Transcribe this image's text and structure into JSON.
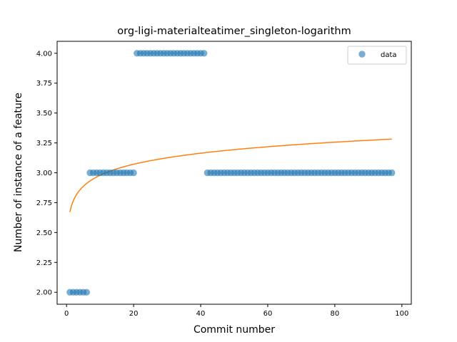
{
  "chart_data": {
    "type": "scatter",
    "title": "org-ligi-materialteatimer_singleton-logarithm",
    "xlabel": "Commit number",
    "ylabel": "Number of instance of a feature",
    "xlim": [
      -2.8,
      102.8
    ],
    "ylim": [
      1.9,
      4.1
    ],
    "xticks": [
      0,
      20,
      40,
      60,
      80,
      100
    ],
    "yticks": [
      2.0,
      2.25,
      2.5,
      2.75,
      3.0,
      3.25,
      3.5,
      3.75,
      4.0
    ],
    "ytick_labels": [
      "2.00",
      "2.25",
      "2.50",
      "2.75",
      "3.00",
      "3.25",
      "3.50",
      "3.75",
      "4.00"
    ],
    "xtick_labels": [
      "0",
      "20",
      "40",
      "60",
      "80",
      "100"
    ],
    "grid": false,
    "legend_position": "top-right",
    "series": [
      {
        "name": "data",
        "kind": "scatter",
        "color": "#1f77b4",
        "x": [
          1,
          2,
          3,
          4,
          5,
          6,
          7,
          8,
          9,
          10,
          11,
          12,
          13,
          14,
          15,
          16,
          17,
          18,
          19,
          20,
          21,
          22,
          23,
          24,
          25,
          26,
          27,
          28,
          29,
          30,
          31,
          32,
          33,
          34,
          35,
          36,
          37,
          38,
          39,
          40,
          41,
          42,
          43,
          44,
          45,
          46,
          47,
          48,
          49,
          50,
          51,
          52,
          53,
          54,
          55,
          56,
          57,
          58,
          59,
          60,
          61,
          62,
          63,
          64,
          65,
          66,
          67,
          68,
          69,
          70,
          71,
          72,
          73,
          74,
          75,
          76,
          77,
          78,
          79,
          80,
          81,
          82,
          83,
          84,
          85,
          86,
          87,
          88,
          89,
          90,
          91,
          92,
          93,
          94,
          95,
          96,
          97
        ],
        "y": [
          2,
          2,
          2,
          2,
          2,
          2,
          3,
          3,
          3,
          3,
          3,
          3,
          3,
          3,
          3,
          3,
          3,
          3,
          3,
          3,
          4,
          4,
          4,
          4,
          4,
          4,
          4,
          4,
          4,
          4,
          4,
          4,
          4,
          4,
          4,
          4,
          4,
          4,
          4,
          4,
          4,
          3,
          3,
          3,
          3,
          3,
          3,
          3,
          3,
          3,
          3,
          3,
          3,
          3,
          3,
          3,
          3,
          3,
          3,
          3,
          3,
          3,
          3,
          3,
          3,
          3,
          3,
          3,
          3,
          3,
          3,
          3,
          3,
          3,
          3,
          3,
          3,
          3,
          3,
          3,
          3,
          3,
          3,
          3,
          3,
          3,
          3,
          3,
          3,
          3,
          3,
          3,
          3,
          3,
          3,
          3,
          3
        ]
      },
      {
        "name": "",
        "kind": "line",
        "color": "#ff7f0e",
        "fit": {
          "model": "logarithm",
          "a": 2.672,
          "b": 0.1333,
          "x_start": 1,
          "x_end": 97
        }
      }
    ]
  }
}
